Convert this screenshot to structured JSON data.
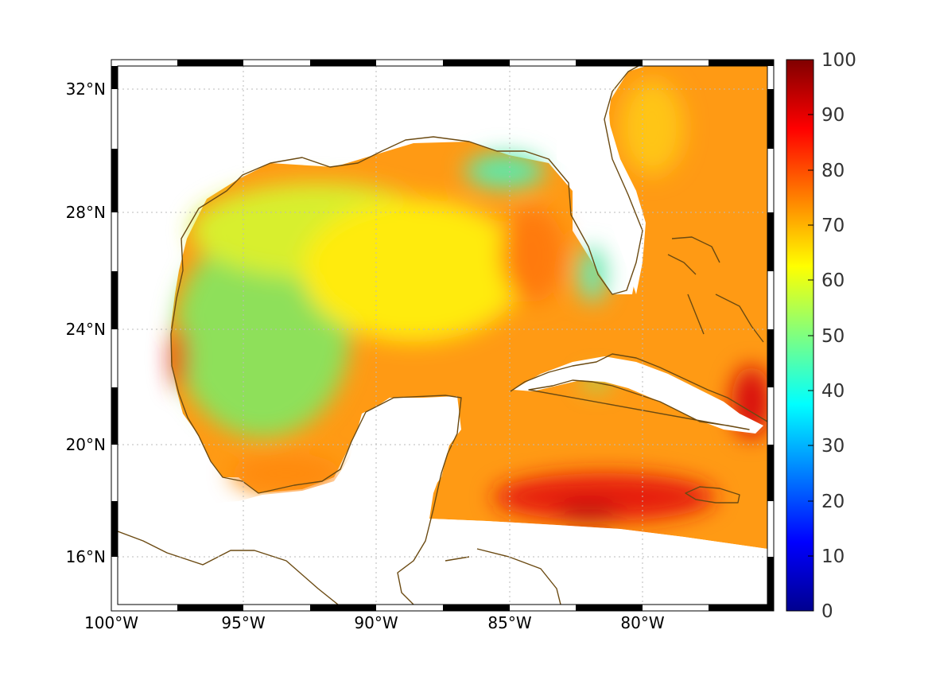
{
  "map": {
    "lon_labels": [
      "100°W",
      "95°W",
      "90°W",
      "85°W",
      "80°W"
    ],
    "lat_labels": [
      "32°N",
      "28°N",
      "24°N",
      "20°N",
      "16°N"
    ]
  },
  "colorbar": {
    "ticks": [
      "100",
      "90",
      "80",
      "70",
      "60",
      "50",
      "40",
      "30",
      "20",
      "10",
      "0"
    ],
    "colormap": "jet",
    "range": [
      0,
      100
    ]
  },
  "colors": {
    "coastline": "#6b4a12",
    "grid": "#bbbbbb"
  }
}
